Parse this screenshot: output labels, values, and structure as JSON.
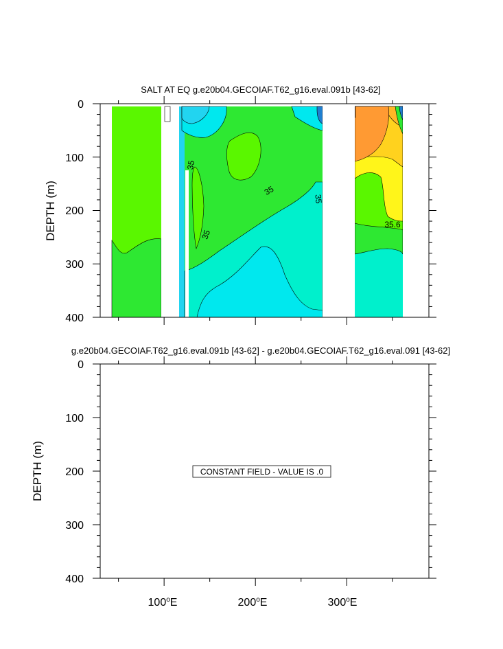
{
  "chart_data": [
    {
      "type": "contour",
      "title": "SALT AT EQ g.e20b04.GECOIAF.T62_g16.eval.091b [43-62]",
      "ylabel": "DEPTH (m)",
      "xlim": [
        30,
        390
      ],
      "ylim": [
        400,
        0
      ],
      "y_ticks": [
        "0",
        "100",
        "200",
        "300",
        "400"
      ],
      "contour_labels": [
        "35",
        "35",
        "35",
        "35",
        "35.6"
      ],
      "fill_colors": {
        "green": "#2ee832",
        "lime": "#5af700",
        "aqua": "#00f0cc",
        "cyan": "#00e8ee",
        "sky": "#22d4f0",
        "orange": "#ff9a33",
        "lt_orange": "#ffb726",
        "gold": "#ffd21e",
        "yellow": "#fff51a",
        "blue": "#1f7fd0"
      }
    },
    {
      "type": "contour",
      "title": "g.e20b04.GECOIAF.T62_g16.eval.091b [43-62] - g.e20b04.GECOIAF.T62_g16.eval.091 [43-62]",
      "ylabel": "DEPTH (m)",
      "xlim": [
        30,
        390
      ],
      "ylim": [
        400,
        0
      ],
      "y_ticks": [
        "0",
        "100",
        "200",
        "300",
        "400"
      ],
      "x_ticks": [
        {
          "value": 100,
          "label": "100",
          "sup": "o",
          "suffix": "E"
        },
        {
          "value": 200,
          "label": "200",
          "sup": "o",
          "suffix": "E"
        },
        {
          "value": 300,
          "label": "300",
          "sup": "o",
          "suffix": "E"
        }
      ],
      "annotation": "CONSTANT FIELD - VALUE IS .0"
    }
  ]
}
